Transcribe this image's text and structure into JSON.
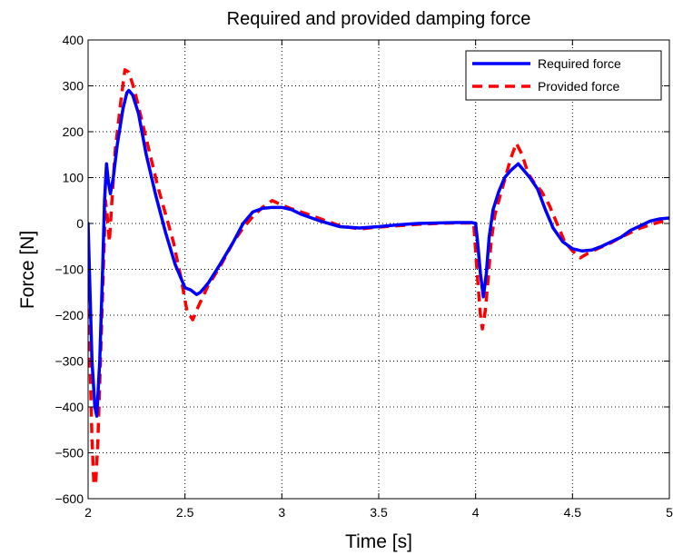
{
  "chart_data": {
    "type": "line",
    "title": "Required and provided damping force",
    "xlabel": "Time [s]",
    "ylabel": "Force [N]",
    "xlim": [
      2,
      5
    ],
    "ylim": [
      -600,
      400
    ],
    "xticks": [
      2,
      2.5,
      3,
      3.5,
      4,
      4.5,
      5
    ],
    "xtick_labels": [
      "2",
      "2.5",
      "3",
      "3.5",
      "4",
      "4.5",
      "5"
    ],
    "yticks": [
      -600,
      -500,
      -400,
      -300,
      -200,
      -100,
      0,
      100,
      200,
      300,
      400
    ],
    "ytick_labels": [
      "−600",
      "−500",
      "−400",
      "−300",
      "−200",
      "−100",
      "0",
      "100",
      "200",
      "300",
      "400"
    ],
    "grid": true,
    "legend": "top-right",
    "series": [
      {
        "name": "Required force",
        "color": "#0000ff",
        "style": "solid",
        "points": [
          [
            2.0,
            0
          ],
          [
            2.01,
            -150
          ],
          [
            2.02,
            -300
          ],
          [
            2.035,
            -400
          ],
          [
            2.045,
            -420
          ],
          [
            2.06,
            -300
          ],
          [
            2.075,
            -100
          ],
          [
            2.085,
            50
          ],
          [
            2.095,
            130
          ],
          [
            2.105,
            90
          ],
          [
            2.115,
            65
          ],
          [
            2.13,
            100
          ],
          [
            2.15,
            170
          ],
          [
            2.18,
            250
          ],
          [
            2.2,
            285
          ],
          [
            2.21,
            290
          ],
          [
            2.23,
            280
          ],
          [
            2.26,
            240
          ],
          [
            2.3,
            150
          ],
          [
            2.35,
            60
          ],
          [
            2.4,
            -20
          ],
          [
            2.45,
            -90
          ],
          [
            2.5,
            -140
          ],
          [
            2.53,
            -145
          ],
          [
            2.56,
            -155
          ],
          [
            2.58,
            -150
          ],
          [
            2.62,
            -130
          ],
          [
            2.68,
            -90
          ],
          [
            2.75,
            -40
          ],
          [
            2.8,
            0
          ],
          [
            2.85,
            25
          ],
          [
            2.9,
            33
          ],
          [
            2.95,
            35
          ],
          [
            3.0,
            35
          ],
          [
            3.05,
            30
          ],
          [
            3.1,
            20
          ],
          [
            3.2,
            5
          ],
          [
            3.3,
            -7
          ],
          [
            3.4,
            -10
          ],
          [
            3.5,
            -7
          ],
          [
            3.6,
            -3
          ],
          [
            3.7,
            0
          ],
          [
            3.8,
            1
          ],
          [
            3.9,
            2
          ],
          [
            3.98,
            2
          ],
          [
            4.0,
            0
          ],
          [
            4.01,
            -40
          ],
          [
            4.025,
            -110
          ],
          [
            4.04,
            -160
          ],
          [
            4.055,
            -110
          ],
          [
            4.07,
            -30
          ],
          [
            4.09,
            30
          ],
          [
            4.12,
            70
          ],
          [
            4.15,
            100
          ],
          [
            4.18,
            115
          ],
          [
            4.22,
            130
          ],
          [
            4.25,
            115
          ],
          [
            4.28,
            100
          ],
          [
            4.32,
            75
          ],
          [
            4.36,
            30
          ],
          [
            4.4,
            -10
          ],
          [
            4.45,
            -40
          ],
          [
            4.5,
            -55
          ],
          [
            4.55,
            -60
          ],
          [
            4.6,
            -58
          ],
          [
            4.65,
            -50
          ],
          [
            4.7,
            -40
          ],
          [
            4.75,
            -30
          ],
          [
            4.8,
            -15
          ],
          [
            4.85,
            -5
          ],
          [
            4.9,
            5
          ],
          [
            4.95,
            10
          ],
          [
            5.0,
            12
          ]
        ]
      },
      {
        "name": "Provided force",
        "color": "#ff0000",
        "style": "dashed",
        "points": [
          [
            2.0,
            -150
          ],
          [
            2.01,
            -300
          ],
          [
            2.02,
            -470
          ],
          [
            2.03,
            -570
          ],
          [
            2.04,
            -560
          ],
          [
            2.05,
            -480
          ],
          [
            2.06,
            -350
          ],
          [
            2.075,
            -150
          ],
          [
            2.09,
            50
          ],
          [
            2.1,
            10
          ],
          [
            2.11,
            -40
          ],
          [
            2.12,
            30
          ],
          [
            2.14,
            160
          ],
          [
            2.17,
            270
          ],
          [
            2.19,
            335
          ],
          [
            2.21,
            330
          ],
          [
            2.24,
            290
          ],
          [
            2.28,
            220
          ],
          [
            2.32,
            150
          ],
          [
            2.36,
            80
          ],
          [
            2.4,
            20
          ],
          [
            2.44,
            -40
          ],
          [
            2.48,
            -120
          ],
          [
            2.51,
            -190
          ],
          [
            2.54,
            -210
          ],
          [
            2.57,
            -180
          ],
          [
            2.62,
            -135
          ],
          [
            2.68,
            -95
          ],
          [
            2.75,
            -40
          ],
          [
            2.8,
            -10
          ],
          [
            2.85,
            15
          ],
          [
            2.9,
            35
          ],
          [
            2.95,
            50
          ],
          [
            3.0,
            40
          ],
          [
            3.05,
            32
          ],
          [
            3.1,
            25
          ],
          [
            3.2,
            10
          ],
          [
            3.3,
            -5
          ],
          [
            3.4,
            -12
          ],
          [
            3.5,
            -8
          ],
          [
            3.6,
            -5
          ],
          [
            3.7,
            -2
          ],
          [
            3.8,
            0
          ],
          [
            3.9,
            1
          ],
          [
            3.99,
            1
          ],
          [
            4.01,
            -120
          ],
          [
            4.025,
            -200
          ],
          [
            4.035,
            -230
          ],
          [
            4.05,
            -190
          ],
          [
            4.065,
            -120
          ],
          [
            4.08,
            -40
          ],
          [
            4.1,
            20
          ],
          [
            4.14,
            80
          ],
          [
            4.18,
            140
          ],
          [
            4.21,
            175
          ],
          [
            4.24,
            150
          ],
          [
            4.27,
            110
          ],
          [
            4.3,
            90
          ],
          [
            4.34,
            70
          ],
          [
            4.38,
            40
          ],
          [
            4.42,
            0
          ],
          [
            4.46,
            -40
          ],
          [
            4.5,
            -60
          ],
          [
            4.54,
            -75
          ],
          [
            4.58,
            -65
          ],
          [
            4.63,
            -55
          ],
          [
            4.7,
            -42
          ],
          [
            4.75,
            -30
          ],
          [
            4.8,
            -20
          ],
          [
            4.85,
            -10
          ],
          [
            4.9,
            -3
          ],
          [
            4.95,
            3
          ],
          [
            5.0,
            8
          ]
        ]
      }
    ]
  }
}
